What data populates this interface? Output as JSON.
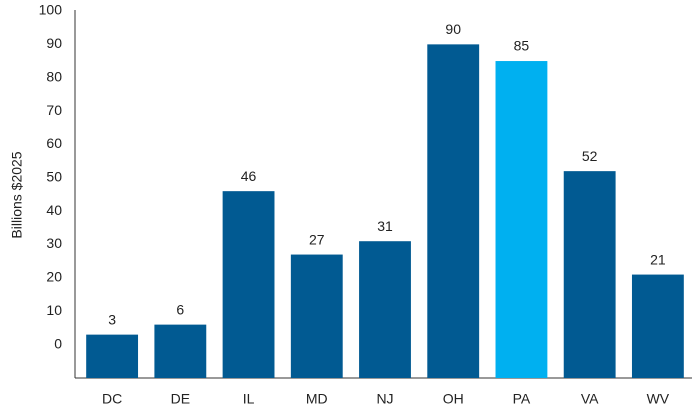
{
  "chart_data": {
    "type": "bar",
    "y_axis_label": "Billions $2025",
    "categories": [
      "DC",
      "DE",
      "IL",
      "MD",
      "NJ",
      "OH",
      "PA",
      "VA",
      "WV"
    ],
    "values": [
      3,
      6,
      46,
      27,
      31,
      90,
      85,
      52,
      21
    ],
    "colors": [
      "#015a92",
      "#015a92",
      "#015a92",
      "#015a92",
      "#015a92",
      "#015a92",
      "#00b0f0",
      "#015a92",
      "#015a92"
    ],
    "ylim": [
      -10,
      100
    ],
    "yticks": [
      0,
      10,
      20,
      30,
      40,
      50,
      60,
      70,
      80,
      90,
      100
    ],
    "grid": false
  }
}
